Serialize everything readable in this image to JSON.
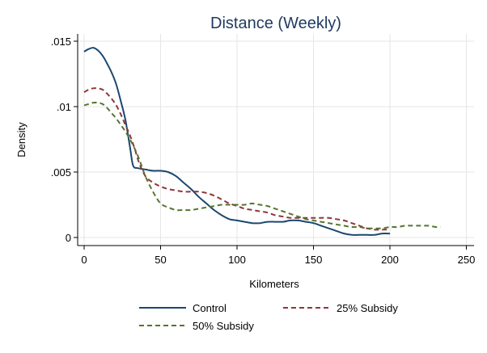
{
  "chart_data": {
    "type": "line",
    "title": "Distance (Weekly)",
    "xlabel": "Kilometers",
    "ylabel": "Density",
    "xlim": [
      0,
      250
    ],
    "ylim": [
      0,
      0.0152
    ],
    "xticks": [
      0,
      50,
      100,
      150,
      200,
      250
    ],
    "xtick_labels": [
      "0",
      "50",
      "100",
      "150",
      "200",
      "250"
    ],
    "yticks": [
      0,
      0.005,
      0.01,
      0.015
    ],
    "ytick_labels": [
      "0",
      ".005",
      ".01",
      ".015"
    ],
    "grid": true,
    "legend_position": "bottom",
    "series": [
      {
        "name": "Control",
        "color": "#1a476f",
        "dash": "solid",
        "x": [
          0,
          3,
          6,
          9,
          12,
          15,
          18,
          21,
          24,
          27,
          30,
          32,
          35,
          40,
          45,
          50,
          55,
          60,
          65,
          70,
          75,
          80,
          85,
          90,
          95,
          100,
          105,
          110,
          115,
          120,
          125,
          130,
          135,
          140,
          145,
          150,
          155,
          160,
          165,
          170,
          175,
          180,
          185,
          190,
          195,
          200
        ],
        "y": [
          0.0142,
          0.0144,
          0.0145,
          0.0143,
          0.0139,
          0.0133,
          0.0126,
          0.0117,
          0.0104,
          0.009,
          0.0069,
          0.0055,
          0.0053,
          0.0052,
          0.0051,
          0.0051,
          0.005,
          0.0047,
          0.0042,
          0.0037,
          0.0031,
          0.0026,
          0.0021,
          0.0017,
          0.0014,
          0.0013,
          0.0012,
          0.0011,
          0.0011,
          0.0012,
          0.0012,
          0.0012,
          0.0013,
          0.0013,
          0.0012,
          0.0011,
          0.0009,
          0.0007,
          0.0005,
          0.0003,
          0.0002,
          0.0002,
          0.0002,
          0.0002,
          0.0003,
          0.0003
        ]
      },
      {
        "name": "25% Subsidy",
        "color": "#90353b",
        "dash": "dashed",
        "x": [
          0,
          3,
          6,
          9,
          12,
          15,
          18,
          21,
          24,
          27,
          30,
          33,
          36,
          40,
          45,
          50,
          55,
          60,
          65,
          70,
          75,
          80,
          85,
          90,
          95,
          100,
          105,
          110,
          115,
          120,
          125,
          130,
          135,
          140,
          145,
          150,
          155,
          160,
          165,
          170,
          175,
          180,
          185,
          190,
          195,
          200
        ],
        "y": [
          0.0111,
          0.0113,
          0.0114,
          0.0114,
          0.0113,
          0.011,
          0.0106,
          0.0101,
          0.0094,
          0.0086,
          0.0078,
          0.0068,
          0.0057,
          0.0047,
          0.0042,
          0.0039,
          0.0037,
          0.0036,
          0.0035,
          0.0035,
          0.0035,
          0.0034,
          0.0032,
          0.0029,
          0.0026,
          0.0024,
          0.0022,
          0.0021,
          0.002,
          0.0019,
          0.0017,
          0.0016,
          0.0015,
          0.0015,
          0.0015,
          0.0015,
          0.0015,
          0.0015,
          0.0014,
          0.0013,
          0.0011,
          0.0009,
          0.0007,
          0.0006,
          0.0006,
          0.0006
        ]
      },
      {
        "name": "50% Subsidy",
        "color": "#55752f",
        "dash": "dashed",
        "x": [
          0,
          3,
          6,
          9,
          12,
          15,
          18,
          21,
          24,
          27,
          30,
          33,
          36,
          40,
          45,
          50,
          55,
          60,
          65,
          70,
          75,
          80,
          85,
          90,
          95,
          100,
          105,
          110,
          115,
          120,
          125,
          130,
          135,
          140,
          145,
          150,
          155,
          160,
          165,
          170,
          175,
          180,
          185,
          190,
          195,
          200,
          205,
          210,
          215,
          220,
          225,
          230,
          233
        ],
        "y": [
          0.0101,
          0.0102,
          0.0103,
          0.0103,
          0.0102,
          0.0099,
          0.0095,
          0.0091,
          0.0086,
          0.0081,
          0.0075,
          0.0068,
          0.006,
          0.0047,
          0.0035,
          0.0026,
          0.0023,
          0.0021,
          0.0021,
          0.0021,
          0.0022,
          0.0023,
          0.0024,
          0.0025,
          0.0025,
          0.0025,
          0.0025,
          0.0026,
          0.0025,
          0.0024,
          0.0022,
          0.002,
          0.0018,
          0.0016,
          0.0014,
          0.0013,
          0.0012,
          0.0011,
          0.001,
          0.0009,
          0.0008,
          0.0008,
          0.0007,
          0.0007,
          0.0007,
          0.0008,
          0.0008,
          0.0009,
          0.0009,
          0.0009,
          0.0009,
          0.0008,
          0.0008
        ]
      }
    ]
  }
}
